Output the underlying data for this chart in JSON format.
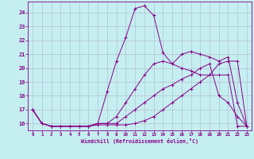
{
  "title": "",
  "xlabel": "Windchill (Refroidissement éolien,°C)",
  "ylabel": "",
  "xlim": [
    -0.5,
    23.5
  ],
  "ylim": [
    15.5,
    24.8
  ],
  "yticks": [
    16,
    17,
    18,
    19,
    20,
    21,
    22,
    23,
    24
  ],
  "xticks": [
    0,
    1,
    2,
    3,
    4,
    5,
    6,
    7,
    8,
    9,
    10,
    11,
    12,
    13,
    14,
    15,
    16,
    17,
    18,
    19,
    20,
    21,
    22,
    23
  ],
  "background_color": "#c5eef0",
  "line_color": "#880088",
  "grid_color": "#b0b8cc",
  "lines": [
    {
      "x": [
        0,
        1,
        2,
        3,
        4,
        5,
        6,
        7,
        8,
        9,
        10,
        11,
        12,
        13,
        14,
        15,
        16,
        17,
        18,
        19,
        20,
        21,
        22,
        23
      ],
      "y": [
        17.0,
        16.0,
        15.8,
        15.8,
        15.8,
        15.8,
        15.8,
        16.0,
        18.3,
        20.5,
        22.2,
        24.3,
        24.5,
        23.8,
        21.1,
        20.3,
        21.0,
        21.2,
        21.0,
        20.8,
        20.5,
        20.8,
        17.5,
        15.8
      ]
    },
    {
      "x": [
        0,
        1,
        2,
        3,
        4,
        5,
        6,
        7,
        8,
        9,
        10,
        11,
        12,
        13,
        14,
        15,
        16,
        17,
        18,
        19,
        20,
        21,
        22,
        23
      ],
      "y": [
        17.0,
        16.0,
        15.8,
        15.8,
        15.8,
        15.8,
        15.8,
        16.0,
        16.0,
        16.5,
        17.5,
        18.5,
        19.5,
        20.3,
        20.5,
        20.3,
        20.0,
        19.8,
        19.5,
        19.5,
        19.5,
        19.5,
        15.8,
        15.8
      ]
    },
    {
      "x": [
        0,
        1,
        2,
        3,
        4,
        5,
        6,
        7,
        8,
        9,
        10,
        11,
        12,
        13,
        14,
        15,
        16,
        17,
        18,
        19,
        20,
        21,
        22,
        23
      ],
      "y": [
        17.0,
        16.0,
        15.8,
        15.8,
        15.8,
        15.8,
        15.8,
        16.0,
        16.0,
        16.0,
        16.5,
        17.0,
        17.5,
        18.0,
        18.5,
        18.8,
        19.2,
        19.5,
        20.0,
        20.3,
        18.0,
        17.5,
        16.5,
        15.8
      ]
    },
    {
      "x": [
        0,
        1,
        2,
        3,
        4,
        5,
        6,
        7,
        8,
        9,
        10,
        11,
        12,
        13,
        14,
        15,
        16,
        17,
        18,
        19,
        20,
        21,
        22,
        23
      ],
      "y": [
        17.0,
        16.0,
        15.8,
        15.8,
        15.8,
        15.8,
        15.8,
        15.9,
        15.9,
        15.9,
        15.9,
        16.0,
        16.2,
        16.5,
        17.0,
        17.5,
        18.0,
        18.5,
        19.0,
        19.5,
        20.3,
        20.5,
        20.5,
        15.8
      ]
    }
  ]
}
